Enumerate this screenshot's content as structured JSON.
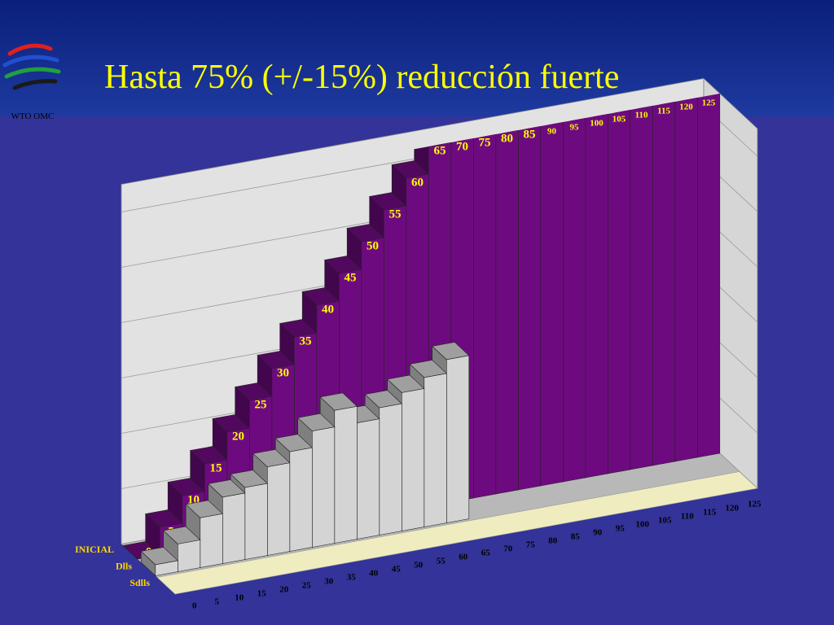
{
  "header": {
    "title": "Hasta 75% (+/-15%) reducción fuerte",
    "logo_text": "WTO OMC"
  },
  "chart_data": {
    "type": "bar3d",
    "categories": [
      0,
      5,
      10,
      15,
      20,
      25,
      30,
      35,
      40,
      45,
      50,
      55,
      60,
      65,
      70,
      75,
      80,
      85,
      90,
      95,
      100,
      105,
      110,
      115,
      120,
      125
    ],
    "series": [
      {
        "name": "INICIAL",
        "color": "#6e0a80",
        "values": [
          0,
          5,
          10,
          15,
          20,
          25,
          30,
          35,
          40,
          45,
          50,
          55,
          60,
          65,
          70,
          75,
          80,
          85,
          90,
          95,
          100,
          105,
          110,
          115,
          120,
          125
        ]
      },
      {
        "name": "Dlls",
        "color": "#d4d4d4",
        "values": [
          2,
          5,
          9,
          12,
          13,
          16,
          18,
          21,
          24,
          21,
          23,
          25,
          27,
          29.5,
          null,
          null,
          null,
          null,
          null,
          null,
          null,
          null,
          null,
          null,
          null,
          null
        ]
      },
      {
        "name": "Sdlls",
        "color": "#d4d4d4",
        "values": [
          null,
          null,
          null,
          null,
          null,
          null,
          null,
          null,
          null,
          null,
          null,
          null,
          null,
          null,
          null,
          null,
          null,
          null,
          null,
          null,
          null,
          null,
          null,
          null,
          null,
          null
        ]
      }
    ],
    "ylim": [
      0,
      65
    ],
    "yticks": [
      0,
      10,
      20,
      30,
      40,
      50,
      60
    ],
    "grid": true
  }
}
